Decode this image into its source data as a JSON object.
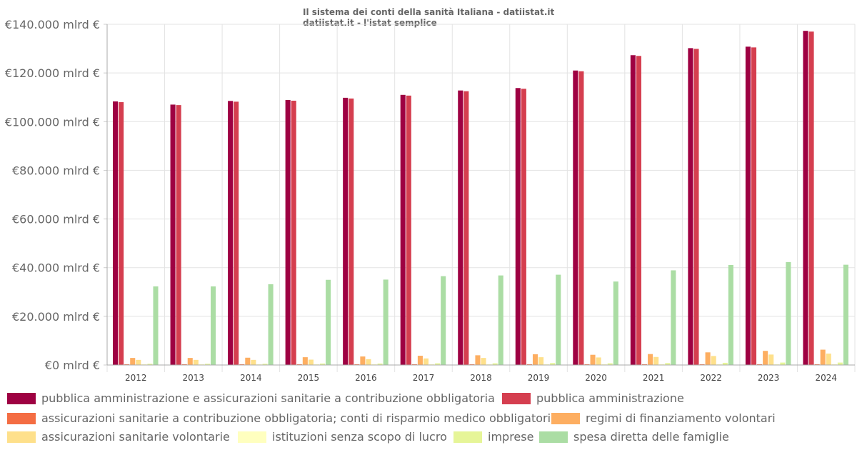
{
  "title_lines": [
    "Il sistema dei conti della sanità Italiana - datiistat.it",
    "datiistat.it - l'istat semplice"
  ],
  "chart_data": {
    "type": "bar",
    "categories": [
      "2012",
      "2013",
      "2014",
      "2015",
      "2016",
      "2017",
      "2018",
      "2019",
      "2020",
      "2021",
      "2022",
      "2023",
      "2024"
    ],
    "ylim": [
      0,
      140000
    ],
    "yticks": [
      0,
      20000,
      40000,
      60000,
      80000,
      100000,
      120000,
      140000
    ],
    "ytick_labels": [
      "€0 mlrd €",
      "€20.000 mlrd €",
      "€40.000 mlrd €",
      "€60.000 mlrd €",
      "€80.000 mlrd €",
      "€100.000 mlrd €",
      "€120.000 mlrd €",
      "€140.000 mlrd €"
    ],
    "grid": true,
    "legend_position": "bottom",
    "series": [
      {
        "name": "pubblica amministrazione e assicurazioni sanitarie a contribuzione obbligatoria",
        "color": "#9e0142",
        "values": [
          108300,
          107000,
          108500,
          108900,
          109800,
          111000,
          112800,
          113800,
          121000,
          127300,
          130200,
          130800,
          137300
        ]
      },
      {
        "name": "pubblica amministrazione",
        "color": "#d53e4f",
        "values": [
          108000,
          106800,
          108200,
          108600,
          109500,
          110700,
          112500,
          113500,
          120700,
          127000,
          129900,
          130500,
          137000
        ]
      },
      {
        "name": "assicurazioni sanitarie a contribuzione obbligatoria; conti di risparmio medico obbligatori",
        "color": "#f46d43",
        "values": [
          300,
          300,
          300,
          300,
          300,
          300,
          300,
          300,
          300,
          300,
          300,
          300,
          300
        ]
      },
      {
        "name": "regimi di finanziamento volontari",
        "color": "#fdae61",
        "values": [
          2900,
          2900,
          3000,
          3200,
          3500,
          3800,
          4000,
          4400,
          4200,
          4500,
          5200,
          5800,
          6300
        ]
      },
      {
        "name": "assicurazioni sanitarie volontarie",
        "color": "#fee08b",
        "values": [
          2100,
          2100,
          2100,
          2200,
          2400,
          2700,
          2900,
          3200,
          3100,
          3300,
          3700,
          4300,
          4700
        ]
      },
      {
        "name": "istituzioni senza scopo di lucro",
        "color": "#ffffbf",
        "values": [
          300,
          300,
          300,
          300,
          300,
          300,
          300,
          300,
          300,
          300,
          300,
          300,
          300
        ]
      },
      {
        "name": "imprese",
        "color": "#e6f598",
        "values": [
          500,
          500,
          500,
          600,
          600,
          700,
          700,
          800,
          700,
          800,
          900,
          1000,
          1000
        ]
      },
      {
        "name": "spesa diretta delle famiglie",
        "color": "#abdda4",
        "values": [
          32300,
          32300,
          33200,
          35000,
          35100,
          36500,
          36800,
          37100,
          34300,
          38900,
          41100,
          42300,
          41200
        ]
      }
    ]
  }
}
